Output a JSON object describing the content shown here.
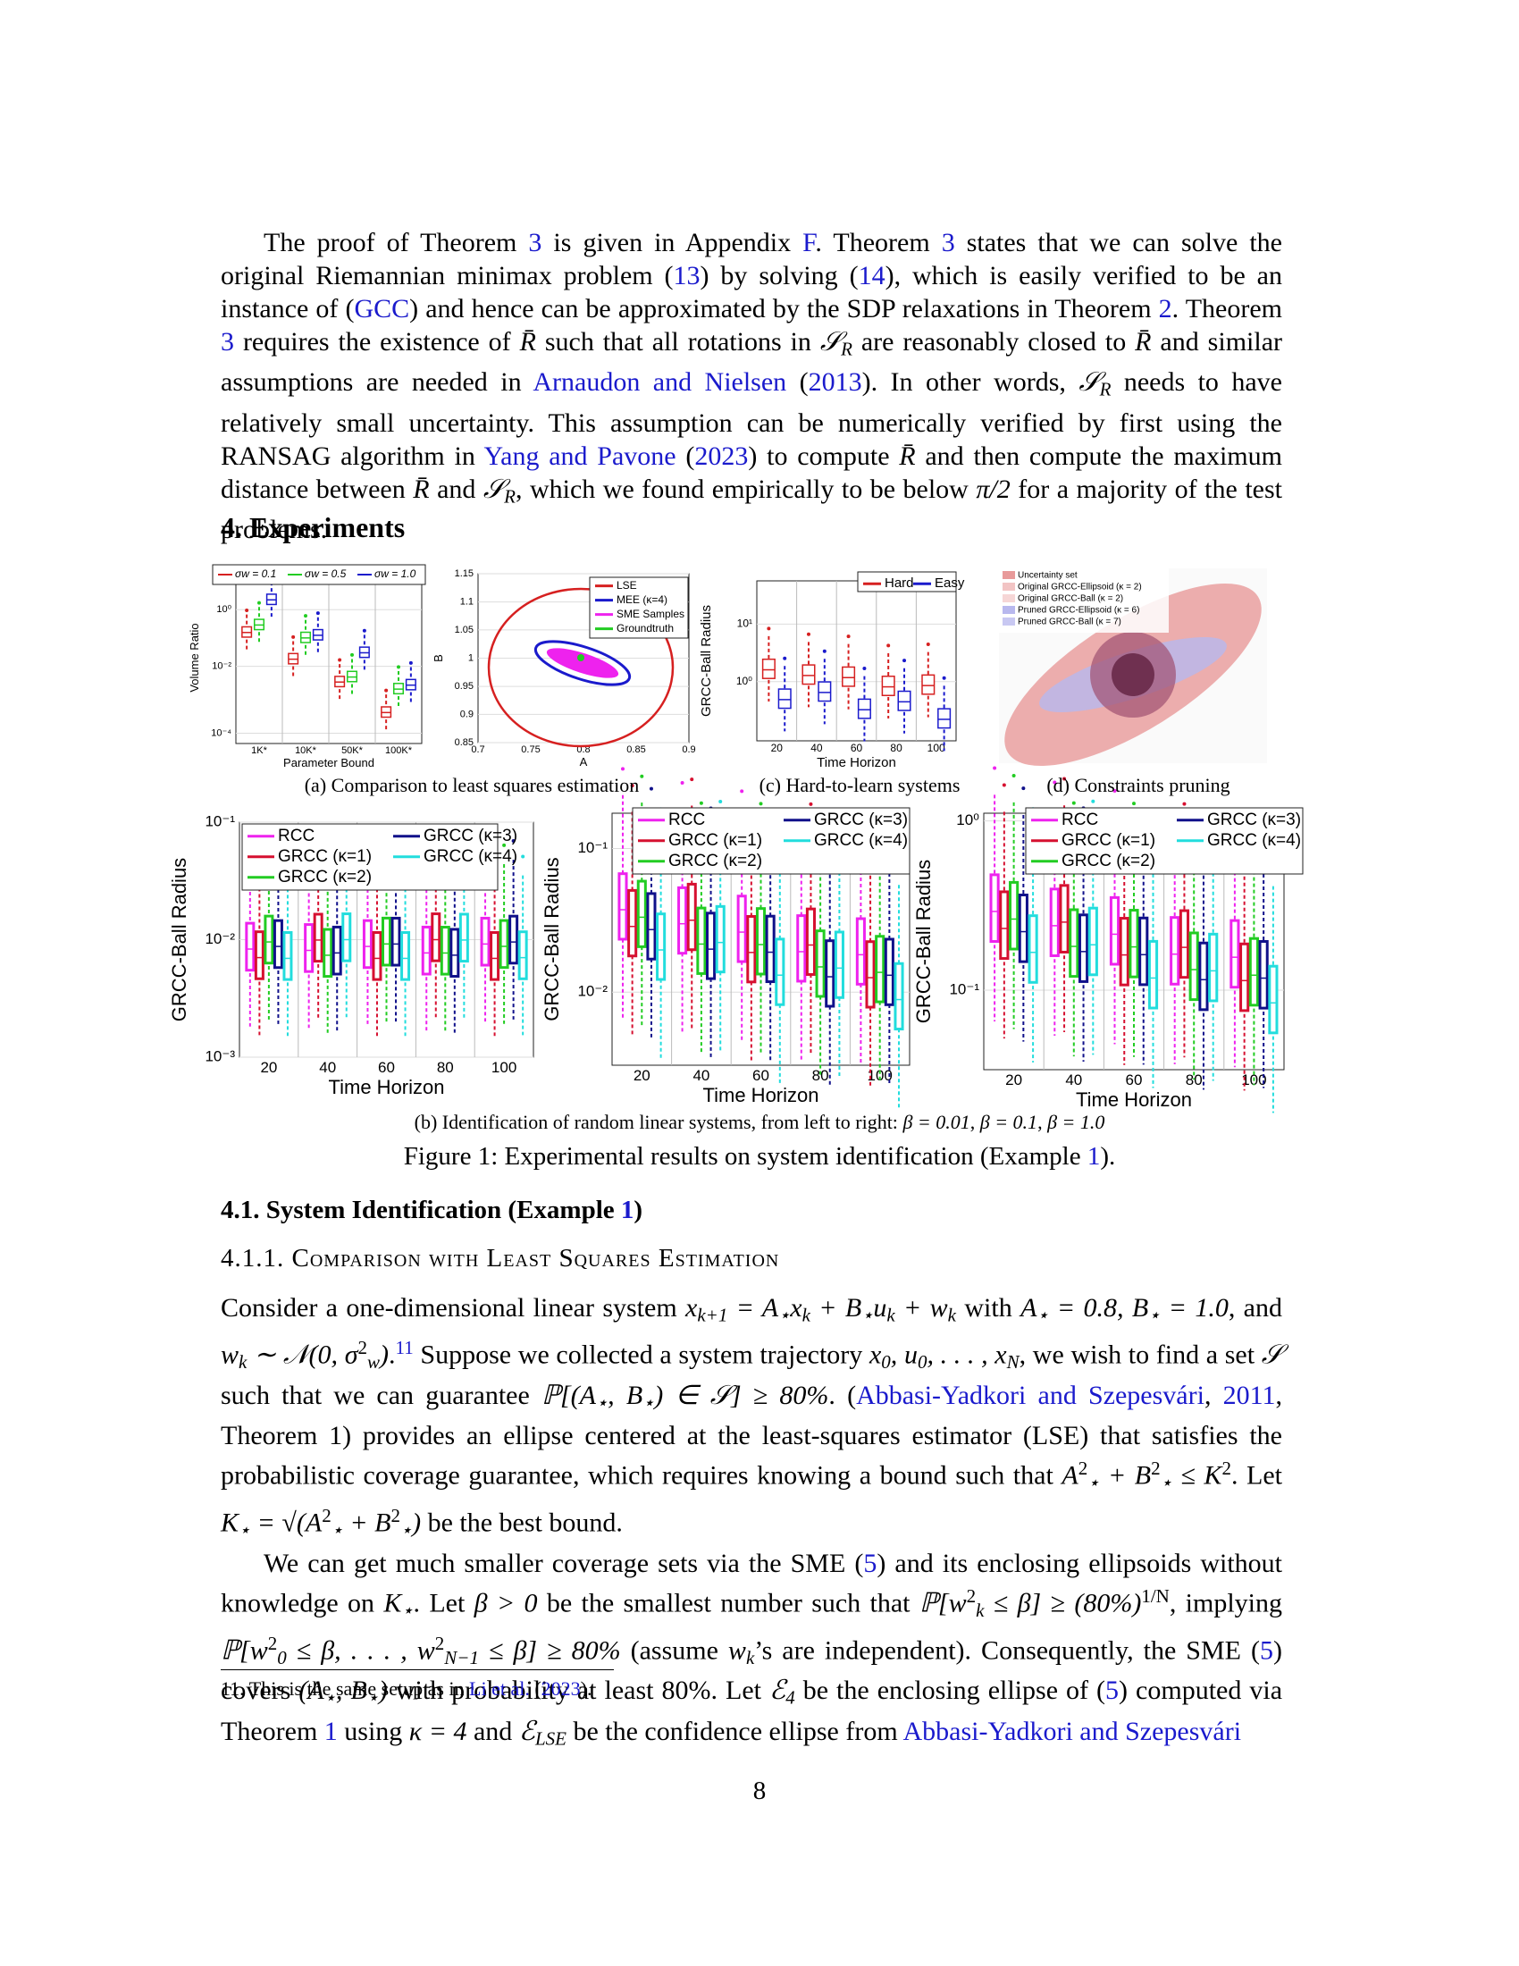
{
  "paragraph_1": [
    "The proof of Theorem ",
    {
      "link": "3"
    },
    " is given in Appendix ",
    {
      "link": "F"
    },
    ". Theorem ",
    {
      "link": "3"
    },
    " states that we can solve the original Riemannian minimax problem (",
    {
      "link": "13"
    },
    ") by solving (",
    {
      "link": "14"
    },
    "), which is easily verified to be an instance of (",
    {
      "link": "GCC"
    },
    ") and hence can be approximated by the SDP relaxations in Theorem ",
    {
      "link": "2"
    },
    ". Theorem ",
    {
      "link": "3"
    },
    " requires the existence of ",
    {
      "m": "R̄"
    },
    " such that all rotations in ",
    {
      "m": "𝒮"
    },
    {
      "sub": "R"
    },
    " are reasonably closed to ",
    {
      "m": "R̄"
    },
    " and similar assumptions are needed in ",
    {
      "link": "Arnaudon and Nielsen"
    },
    " (",
    {
      "link": "2013"
    },
    "). In other words, ",
    {
      "m": "𝒮"
    },
    {
      "sub": "R"
    },
    " needs to have relatively small uncertainty. This assumption can be numerically verified by first using the RANSAG algorithm in ",
    {
      "link": "Yang and Pavone"
    },
    " (",
    {
      "link": "2023"
    },
    ") to compute ",
    {
      "m": "R̄"
    },
    " and then compute the maximum distance between ",
    {
      "m": "R̄"
    },
    " and ",
    {
      "m": "𝒮"
    },
    {
      "sub": "R"
    },
    ", which we found empirically to be below ",
    {
      "m": "π/2"
    },
    " for a majority of the test problems."
  ],
  "section_heading": "4.  Experiments",
  "figure_1": {
    "a_boxplot": {
      "legend": [
        "σw = 0.1",
        "σw = 0.5",
        "σw = 1.0"
      ],
      "colors": [
        "#d62020",
        "#22cc22",
        "#1a1acc"
      ],
      "ylabel": "Volume Ratio",
      "yticks": [
        "10⁰",
        "10⁻²",
        "10⁻⁴"
      ],
      "xticks": [
        "1K*",
        "10K*",
        "50K*",
        "100K*"
      ],
      "xlabel": "Parameter Bound"
    },
    "a_scatter": {
      "legend": [
        "LSE",
        "MEE (κ=4)",
        "SME Samples",
        "Groundtruth"
      ],
      "colors": [
        "#d62020",
        "#1a1acc",
        "#ee22ee",
        "#22cc22"
      ],
      "ylabel": "B",
      "yticks": [
        "1.15",
        "1.1",
        "1.05",
        "1",
        "0.95",
        "0.9",
        "0.85"
      ],
      "xticks": [
        "0.7",
        "0.75",
        "0.8",
        "0.85",
        "0.9"
      ],
      "xlabel": "A"
    },
    "a_caption": "(a) Comparison to least squares estimation",
    "c_plot": {
      "legend": [
        "Hard",
        "Easy"
      ],
      "colors": [
        "#d62020",
        "#1a1acc"
      ],
      "ylabel": "GRCC-Ball Radius",
      "yticks": [
        "10¹",
        "10⁰"
      ],
      "xticks": [
        "20",
        "40",
        "60",
        "80",
        "100"
      ],
      "xlabel": "Time Horizon"
    },
    "c_caption": "(c) Hard-to-learn systems",
    "d_legend": [
      "Uncertainty set",
      "Original GRCC-Ellipsoid (κ = 2)",
      "Original GRCC-Ball (κ = 2)",
      "Pruned GRCC-Ellipsoid (κ = 6)",
      "Pruned GRCC-Ball (κ = 7)"
    ],
    "d_colors": [
      "#e89a9a",
      "#f2c4c4",
      "#f6d6d6",
      "#b8b8ee",
      "#c8c8f2"
    ],
    "d_caption": "(d) Constraints pruning",
    "b_plots": [
      {
        "legend": [
          "RCC",
          "GRCC (κ=1)",
          "GRCC (κ=2)",
          "GRCC (κ=3)",
          "GRCC (κ=4)"
        ],
        "colors": [
          "#ee22ee",
          "#d61030",
          "#22cc22",
          "#10108a",
          "#22dddd"
        ],
        "ylabel": "GRCC-Ball Radius",
        "yticks": [
          "10⁻¹",
          "10⁻²",
          "10⁻³"
        ],
        "xticks": [
          "20",
          "40",
          "60",
          "80",
          "100"
        ],
        "xlabel": "Time Horizon"
      },
      {
        "legend": [
          "RCC",
          "GRCC (κ=1)",
          "GRCC (κ=2)",
          "GRCC (κ=3)",
          "GRCC (κ=4)"
        ],
        "colors": [
          "#ee22ee",
          "#d61030",
          "#22cc22",
          "#10108a",
          "#22dddd"
        ],
        "ylabel": "GRCC-Ball Radius",
        "yticks": [
          "10⁻¹",
          "10⁻²"
        ],
        "xticks": [
          "20",
          "40",
          "60",
          "80",
          "100"
        ],
        "xlabel": "Time Horizon"
      },
      {
        "legend": [
          "RCC",
          "GRCC (κ=1)",
          "GRCC (κ=2)",
          "GRCC (κ=3)",
          "GRCC (κ=4)"
        ],
        "colors": [
          "#ee22ee",
          "#d61030",
          "#22cc22",
          "#10108a",
          "#22dddd"
        ],
        "ylabel": "GRCC-Ball Radius",
        "yticks": [
          "10⁰",
          "10⁻¹"
        ],
        "xticks": [
          "20",
          "40",
          "60",
          "80",
          "100"
        ],
        "xlabel": "Time Horizon"
      }
    ],
    "b_caption": [
      "(b) Identification of random linear systems, from left to right: ",
      {
        "m": "β = 0.01"
      },
      ", ",
      {
        "m": "β = 0.1"
      },
      ", ",
      {
        "m": "β = 1.0"
      }
    ],
    "caption": [
      "Figure 1: Experimental results on system identification (Example ",
      {
        "link": "1"
      },
      ")."
    ]
  },
  "subsection_heading": [
    "4.1.  System Identification (Example ",
    {
      "link": "1"
    },
    ")"
  ],
  "subsubsection_heading": [
    "4.1.1.  ",
    {
      "sc": "Comparison with Least Squares Estimation"
    }
  ],
  "paragraph_2": [
    "Consider a one-dimensional linear system ",
    {
      "m": "x"
    },
    {
      "sub": "k+1"
    },
    {
      "m": " = A"
    },
    {
      "sub": "⋆"
    },
    {
      "m": "x"
    },
    {
      "sub": "k"
    },
    {
      "m": " + B"
    },
    {
      "sub": "⋆"
    },
    {
      "m": "u"
    },
    {
      "sub": "k"
    },
    {
      "m": " + w"
    },
    {
      "sub": "k"
    },
    " with ",
    {
      "m": "A"
    },
    {
      "sub": "⋆"
    },
    {
      "m": " = 0.8, B"
    },
    {
      "sub": "⋆"
    },
    {
      "m": " = 1.0"
    },
    ", and ",
    {
      "m": "w"
    },
    {
      "sub": "k"
    },
    {
      "m": " ∼ 𝒩(0, σ"
    },
    {
      "sup": "2"
    },
    {
      "sub": "w"
    },
    {
      "m": ")"
    },
    ".",
    {
      "suplink": "11"
    },
    " Suppose we collected a system trajectory ",
    {
      "m": "x"
    },
    {
      "sub": "0"
    },
    {
      "m": ", u"
    },
    {
      "sub": "0"
    },
    {
      "m": ", . . . , x"
    },
    {
      "sub": "N"
    },
    ", we wish to find a set ",
    {
      "m": "𝒮"
    },
    " such that we can guarantee ",
    {
      "m": "ℙ[(A"
    },
    {
      "sub": "⋆"
    },
    {
      "m": ", B"
    },
    {
      "sub": "⋆"
    },
    {
      "m": ") ∈ 𝒮] ≥ 80%"
    },
    ". (",
    {
      "link": "Abbasi-Yadkori and Szepesvári"
    },
    ", ",
    {
      "link": "2011"
    },
    ", Theorem 1) provides an ellipse centered at the least-squares estimator (LSE) that satisfies the probabilistic coverage guarantee, which requires knowing a bound such that ",
    {
      "m": "A"
    },
    {
      "sup": "2"
    },
    {
      "sub": "⋆"
    },
    {
      "m": " + B"
    },
    {
      "sup": "2"
    },
    {
      "sub": "⋆"
    },
    {
      "m": " ≤ K"
    },
    {
      "sup": "2"
    },
    ". Let ",
    {
      "m": "K"
    },
    {
      "sub": "⋆"
    },
    {
      "m": " = √(A"
    },
    {
      "sup": "2"
    },
    {
      "sub": "⋆"
    },
    {
      "m": " + B"
    },
    {
      "sup": "2"
    },
    {
      "sub": "⋆"
    },
    {
      "m": ")"
    },
    " be the best bound."
  ],
  "paragraph_3": [
    "We can get much smaller coverage sets via the SME (",
    {
      "link": "5"
    },
    ") and its enclosing ellipsoids without knowledge on ",
    {
      "m": "K"
    },
    {
      "sub": "⋆"
    },
    ". Let ",
    {
      "m": "β > 0"
    },
    " be the smallest number such that ",
    {
      "m": "ℙ[w"
    },
    {
      "sup": "2"
    },
    {
      "sub": "k"
    },
    {
      "m": " ≤ β] ≥ (80%)"
    },
    {
      "sup": "1/N"
    },
    ", implying ",
    {
      "m": "ℙ[w"
    },
    {
      "sup": "2"
    },
    {
      "sub": "0"
    },
    {
      "m": " ≤ β, . . . , w"
    },
    {
      "sup": "2"
    },
    {
      "sub": "N−1"
    },
    {
      "m": " ≤ β] ≥ 80%"
    },
    " (assume ",
    {
      "m": "w"
    },
    {
      "sub": "k"
    },
    "’s are independent). Consequently, the SME (",
    {
      "link": "5"
    },
    ") covers ",
    {
      "m": "(A"
    },
    {
      "sub": "⋆"
    },
    {
      "m": ", B"
    },
    {
      "sub": "⋆"
    },
    {
      "m": ")"
    },
    " with probability at least 80%. Let ",
    {
      "m": "ℰ"
    },
    {
      "sub": "4"
    },
    " be the enclosing ellipse of (",
    {
      "link": "5"
    },
    ") computed via Theorem ",
    {
      "link": "1"
    },
    " using ",
    {
      "m": "κ = 4"
    },
    " and ",
    {
      "m": "ℰ"
    },
    {
      "sub": "LSE"
    },
    " be the confidence ellipse from ",
    {
      "link": "Abbasi-Yadkori and Szepesvári"
    }
  ],
  "footnote": [
    "11. This is the same setup as in ",
    {
      "link": "Li et al."
    },
    " (",
    {
      "link": "2023"
    },
    ")."
  ],
  "page_number": "8"
}
